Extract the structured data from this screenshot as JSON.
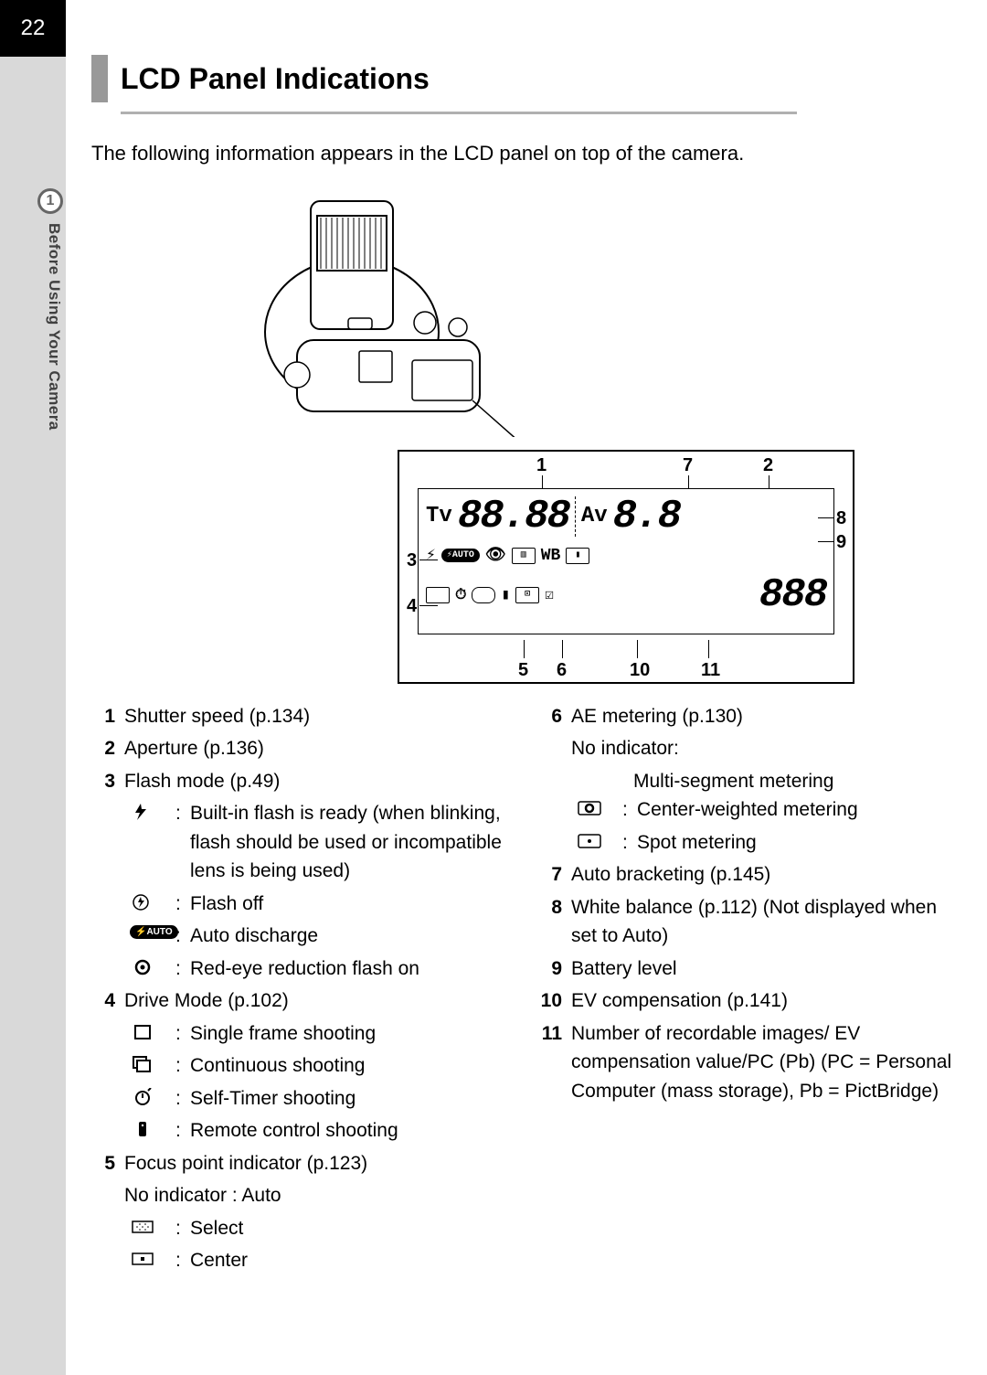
{
  "page_number": "22",
  "chapter_number": "1",
  "side_label": "Before Using Your Camera",
  "title": "LCD Panel Indications",
  "intro": "The following information appears in the LCD panel on top of the camera.",
  "callouts": [
    "1",
    "2",
    "3",
    "4",
    "5",
    "6",
    "7",
    "8",
    "9",
    "10",
    "11"
  ],
  "lcd_display": {
    "tv_label": "Tv",
    "tv_value": "88.88",
    "av_label": "Av",
    "av_value": "8.8",
    "wb_label": "WB",
    "count_value": "888",
    "auto_pill": "⚡AUTO"
  },
  "legend_left": [
    {
      "idx": "1",
      "text": "Shutter speed (p.134)"
    },
    {
      "idx": "2",
      "text": "Aperture (p.136)"
    },
    {
      "idx": "3",
      "text": "Flash mode (p.49)",
      "subs": [
        {
          "icon": "flash",
          "text": "Built-in flash is ready (when blinking, flash should be used or incompatible lens is being used)"
        },
        {
          "icon": "flash-off",
          "text": "Flash off"
        },
        {
          "icon": "auto-pill",
          "text": "Auto discharge"
        },
        {
          "icon": "eye",
          "text": "Red-eye reduction flash on"
        }
      ]
    },
    {
      "idx": "4",
      "text": "Drive Mode (p.102)",
      "subs": [
        {
          "icon": "square",
          "text": "Single frame shooting"
        },
        {
          "icon": "stack",
          "text": "Continuous shooting"
        },
        {
          "icon": "timer",
          "text": "Self-Timer shooting"
        },
        {
          "icon": "remote",
          "text": "Remote control shooting"
        }
      ]
    },
    {
      "idx": "5",
      "text": "Focus point indicator (p.123)",
      "extra": "No indicator : Auto",
      "subs": [
        {
          "icon": "select-grid",
          "text": "Select"
        },
        {
          "icon": "center-dot",
          "text": "Center"
        }
      ]
    }
  ],
  "legend_right": [
    {
      "idx": "6",
      "text": "AE metering (p.130)",
      "extra": "No indicator:",
      "indent_extra": "Multi-segment metering",
      "subs": [
        {
          "icon": "center-weight",
          "text": "Center-weighted metering"
        },
        {
          "icon": "spot",
          "text": "Spot metering"
        }
      ]
    },
    {
      "idx": "7",
      "text": "Auto bracketing (p.145)"
    },
    {
      "idx": "8",
      "text": "White balance (p.112) (Not displayed when set to Auto)"
    },
    {
      "idx": "9",
      "text": "Battery level"
    },
    {
      "idx": "10",
      "text": "EV compensation (p.141)"
    },
    {
      "idx": "11",
      "text": "Number of recordable images/ EV compensation value/PC (Pb) (PC = Personal Computer (mass storage), Pb = PictBridge)"
    }
  ],
  "colors": {
    "page_num_bg": "#000000",
    "page_num_fg": "#ffffff",
    "margin_bg": "#d9d9d9",
    "title_bar": "#999999",
    "rule": "#b0b0b0",
    "text": "#000000",
    "side_text": "#404040",
    "tab_border": "#666666"
  }
}
